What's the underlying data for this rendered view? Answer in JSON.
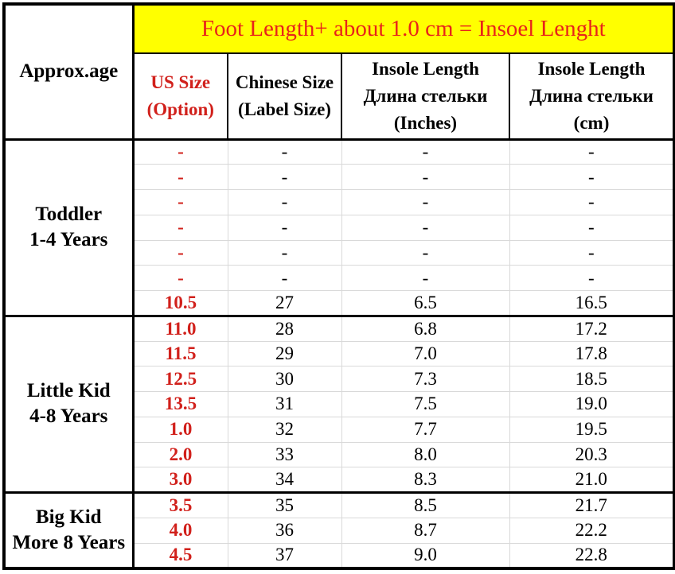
{
  "header": {
    "approx_age": "Approx.age",
    "banner": "Foot Length+ about 1.0 cm = Insoel Lenght",
    "columns": [
      {
        "label": "US Size\n(Option)",
        "style": "red"
      },
      {
        "label": "Chinese Size\n(Label Size)",
        "style": "black"
      },
      {
        "label": "Insole Length\nДлина стельки\n(Inches)",
        "style": "black"
      },
      {
        "label": "Insole Length\nДлина стельки\n(cm)",
        "style": "black"
      }
    ]
  },
  "chart_data": {
    "type": "table",
    "title": "Foot Length+ about 1.0 cm = Insoel Lenght",
    "columns": [
      "Approx.age",
      "US Size (Option)",
      "Chinese Size (Label Size)",
      "Insole Length Длина стельки (Inches)",
      "Insole Length Длина стельки (cm)"
    ],
    "groups": [
      {
        "label": "Toddler\n1-4 Years",
        "rows": [
          [
            "-",
            "-",
            "-",
            "-"
          ],
          [
            "-",
            "-",
            "-",
            "-"
          ],
          [
            "-",
            "-",
            "-",
            "-"
          ],
          [
            "-",
            "-",
            "-",
            "-"
          ],
          [
            "-",
            "-",
            "-",
            "-"
          ],
          [
            "-",
            "-",
            "-",
            "-"
          ],
          [
            "10.5",
            "27",
            "6.5",
            "16.5"
          ]
        ]
      },
      {
        "label": "Little Kid\n4-8 Years",
        "rows": [
          [
            "11.0",
            "28",
            "6.8",
            "17.2"
          ],
          [
            "11.5",
            "29",
            "7.0",
            "17.8"
          ],
          [
            "12.5",
            "30",
            "7.3",
            "18.5"
          ],
          [
            "13.5",
            "31",
            "7.5",
            "19.0"
          ],
          [
            "1.0",
            "32",
            "7.7",
            "19.5"
          ],
          [
            "2.0",
            "33",
            "8.0",
            "20.3"
          ],
          [
            "3.0",
            "34",
            "8.3",
            "21.0"
          ]
        ]
      },
      {
        "label": "Big Kid\nMore 8 Years",
        "rows": [
          [
            "3.5",
            "35",
            "8.5",
            "21.7"
          ],
          [
            "4.0",
            "36",
            "8.7",
            "22.2"
          ],
          [
            "4.5",
            "37",
            "9.0",
            "22.8"
          ]
        ]
      }
    ]
  },
  "colors": {
    "banner_bg": "#ffff00",
    "banner_text": "#e8231a",
    "us_red": "#d1201b",
    "grid_gray": "#d9d9d9",
    "border_black": "#000000"
  }
}
